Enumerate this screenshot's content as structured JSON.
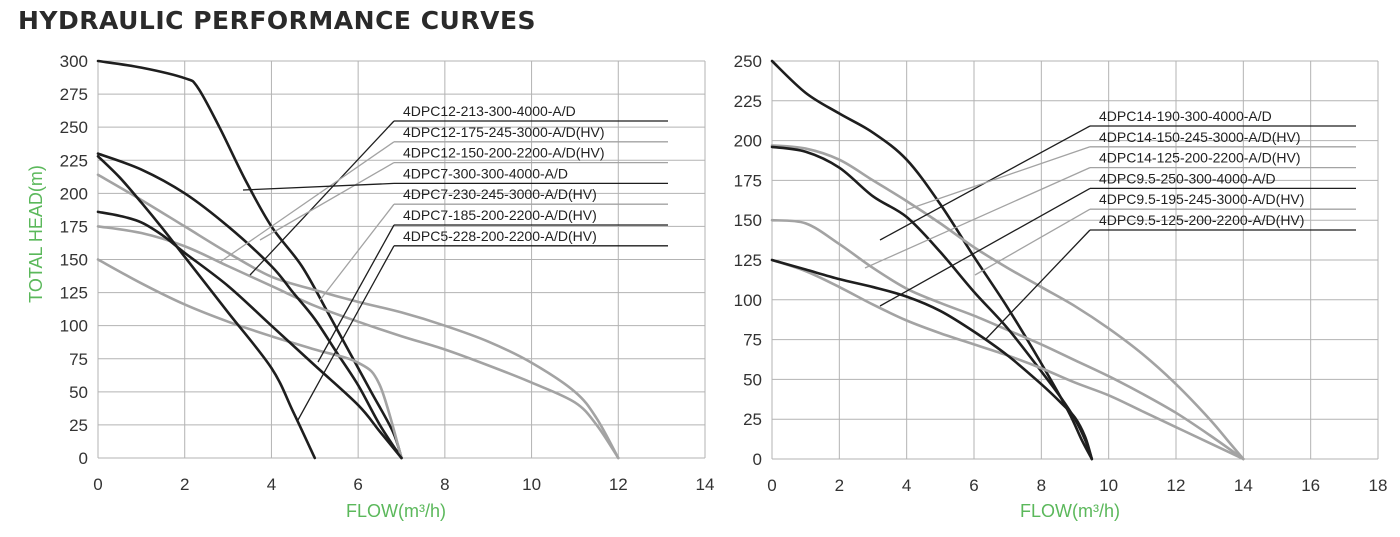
{
  "title": "HYDRAULIC PERFORMANCE CURVES",
  "colors": {
    "dark": "#1e1e1e",
    "light": "#a3a3a3",
    "grid": "#b3b3b3",
    "axis_label": "#5bb85b"
  },
  "chart_data": [
    {
      "type": "line",
      "xlabel": "FLOW(m³/h)",
      "ylabel": "TOTAL HEAD(m)",
      "xlim": [
        0,
        14
      ],
      "ylim": [
        0,
        300
      ],
      "xticks": [
        0,
        2,
        4,
        6,
        8,
        10,
        12,
        14
      ],
      "yticks": [
        0,
        25,
        50,
        75,
        100,
        125,
        150,
        175,
        200,
        225,
        250,
        275,
        300
      ],
      "grid": true,
      "legend_position": "upper-right",
      "series": [
        {
          "name": "4DPC12-213-300-4000-A/D",
          "color": "dark",
          "x": [
            0,
            1,
            2,
            2.3,
            2.8,
            3.4,
            4,
            4.7,
            5.3,
            5.8,
            6.3,
            6.8,
            7
          ],
          "y": [
            300,
            295,
            287,
            280,
            250,
            210,
            175,
            145,
            110,
            80,
            50,
            20,
            0
          ]
        },
        {
          "name": "4DPC12-175-245-3000-A/D(HV)",
          "color": "light",
          "x": [
            0,
            1,
            2,
            3,
            4,
            5,
            6,
            7,
            8,
            9,
            10,
            11,
            11.5,
            12
          ],
          "y": [
            214,
            195,
            175,
            155,
            137,
            127,
            118,
            110,
            100,
            88,
            72,
            50,
            30,
            0
          ]
        },
        {
          "name": "4DPC12-150-200-2200-A/D(HV)",
          "color": "light",
          "x": [
            0,
            1,
            2,
            3,
            4,
            5,
            6,
            7,
            8,
            9,
            10,
            11,
            11.5,
            12
          ],
          "y": [
            175,
            170,
            160,
            145,
            130,
            115,
            103,
            92,
            82,
            70,
            57,
            42,
            25,
            0
          ]
        },
        {
          "name": "4DPC7-300-300-4000-A/D",
          "color": "dark",
          "x": [
            0,
            1,
            2,
            3,
            4,
            4.5,
            5,
            5.5,
            6,
            6.5,
            7
          ],
          "y": [
            230,
            218,
            200,
            175,
            145,
            125,
            105,
            80,
            55,
            25,
            0
          ]
        },
        {
          "name": "4DPC7-230-245-3000-A/D(HV)",
          "color": "light",
          "x": [
            0,
            1,
            2,
            3,
            4,
            5,
            6,
            6.5,
            7
          ],
          "y": [
            150,
            132,
            116,
            103,
            92,
            82,
            72,
            55,
            0
          ]
        },
        {
          "name": "4DPC7-185-200-2200-A/D(HV)",
          "color": "dark",
          "x": [
            0,
            0.5,
            1,
            1.5,
            2,
            3,
            4,
            5,
            6,
            6.5,
            7
          ],
          "y": [
            186,
            183,
            178,
            168,
            155,
            130,
            100,
            70,
            40,
            20,
            0
          ]
        },
        {
          "name": "4DPC5-228-200-2200-A/D(HV)",
          "color": "dark",
          "x": [
            0,
            0.5,
            1,
            1.5,
            2,
            3,
            4,
            4.5,
            5
          ],
          "y": [
            228,
            212,
            193,
            173,
            152,
            110,
            68,
            35,
            0
          ]
        }
      ]
    },
    {
      "type": "line",
      "xlabel": "FLOW(m³/h)",
      "ylabel": "",
      "xlim": [
        0,
        18
      ],
      "ylim": [
        0,
        250
      ],
      "xticks": [
        0,
        2,
        4,
        6,
        8,
        10,
        12,
        14,
        16,
        18
      ],
      "yticks": [
        0,
        25,
        50,
        75,
        100,
        125,
        150,
        175,
        200,
        225,
        250
      ],
      "grid": true,
      "legend_position": "upper-right",
      "series": [
        {
          "name": "4DPC14-190-300-4000-A/D",
          "color": "dark",
          "x": [
            0,
            1,
            2,
            3,
            4,
            5,
            6,
            7,
            8,
            8.8,
            9.2,
            9.5
          ],
          "y": [
            250,
            230,
            217,
            205,
            188,
            160,
            127,
            95,
            60,
            30,
            12,
            0
          ]
        },
        {
          "name": "4DPC14-150-245-3000-A/D(HV)",
          "color": "light",
          "x": [
            0,
            1,
            2,
            3,
            4,
            5,
            6,
            7,
            8,
            9,
            10,
            11,
            12,
            13,
            13.6,
            14
          ],
          "y": [
            197,
            195,
            188,
            175,
            162,
            148,
            133,
            120,
            108,
            96,
            82,
            66,
            47,
            25,
            10,
            0
          ]
        },
        {
          "name": "4DPC14-125-200-2200-A/D(HV)",
          "color": "light",
          "x": [
            0,
            1,
            2,
            3,
            4,
            5,
            6,
            7,
            8,
            9,
            10,
            11,
            12,
            13,
            14
          ],
          "y": [
            150,
            148,
            135,
            120,
            107,
            98,
            90,
            81,
            72,
            62,
            52,
            41,
            29,
            15,
            0
          ]
        },
        {
          "name": "4DPC9.5-250-300-4000-A/D",
          "color": "dark",
          "x": [
            0,
            1,
            2,
            3,
            4,
            5,
            6,
            7,
            8,
            8.6,
            9,
            9.3,
            9.5
          ],
          "y": [
            196,
            193,
            183,
            165,
            152,
            130,
            105,
            82,
            55,
            38,
            25,
            12,
            0
          ]
        },
        {
          "name": "4DPC9.5-195-245-3000-A/D(HV)",
          "color": "light",
          "x": [
            0,
            1,
            2,
            3,
            4,
            5,
            6,
            7,
            8,
            9,
            10,
            11,
            12,
            13,
            14
          ],
          "y": [
            125,
            118,
            108,
            97,
            87,
            79,
            72,
            65,
            57,
            48,
            40,
            30,
            20,
            10,
            0
          ]
        },
        {
          "name": "4DPC9.5-125-200-2200-A/D(HV)",
          "color": "dark",
          "x": [
            0,
            1,
            2,
            3,
            4,
            5,
            6,
            7,
            8,
            8.6,
            9,
            9.3,
            9.5
          ],
          "y": [
            125,
            119,
            113,
            108,
            102,
            93,
            80,
            65,
            47,
            35,
            26,
            14,
            0
          ]
        }
      ]
    }
  ]
}
